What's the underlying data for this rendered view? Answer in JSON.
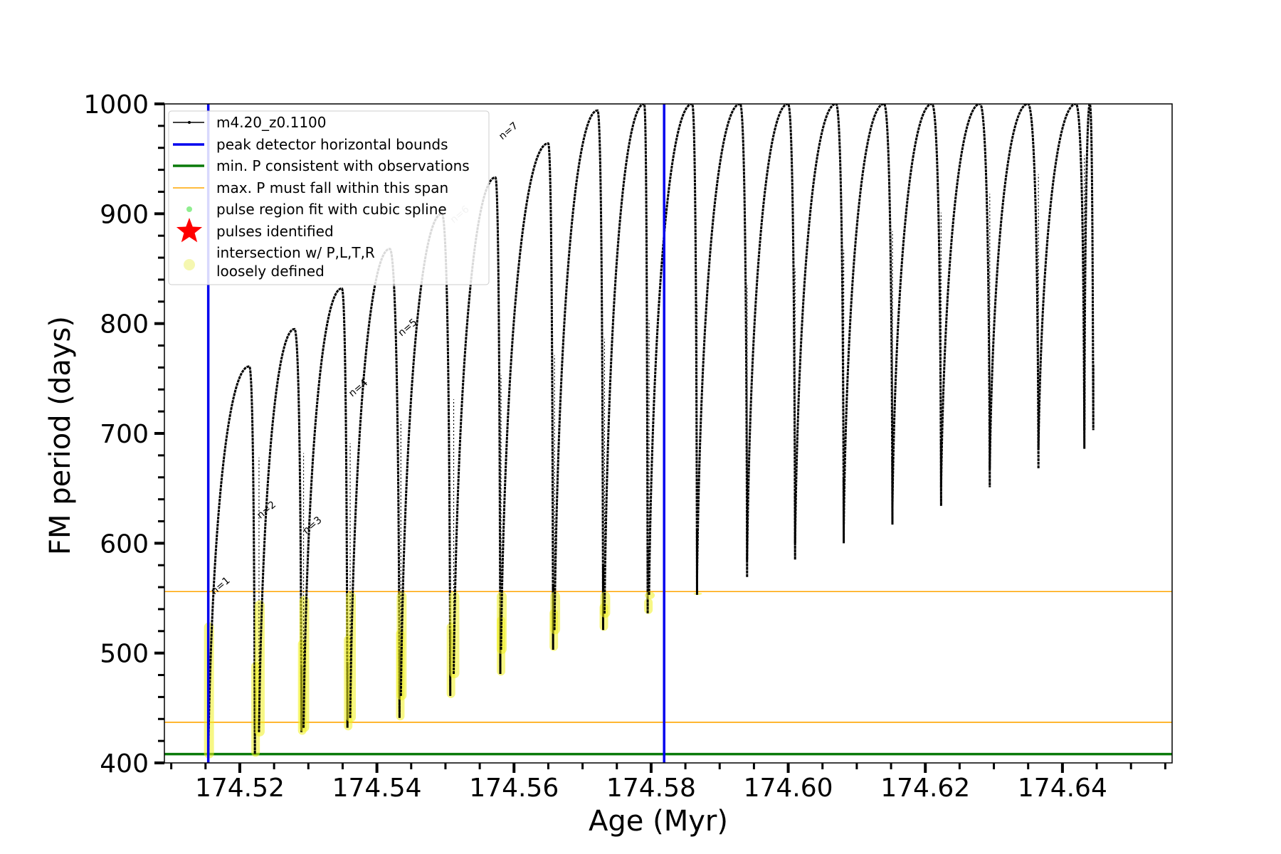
{
  "chart_data": {
    "type": "line",
    "title": "",
    "xlabel": "Age (Myr)",
    "ylabel": "FM period (days)",
    "xlim": [
      174.509,
      174.656
    ],
    "ylim": [
      400,
      1000
    ],
    "x_ticks": [
      174.52,
      174.54,
      174.56,
      174.58,
      174.6,
      174.62,
      174.64
    ],
    "x_tick_labels": [
      "174.52",
      "174.54",
      "174.56",
      "174.58",
      "174.60",
      "174.62",
      "174.64"
    ],
    "y_ticks": [
      400,
      500,
      600,
      700,
      800,
      900,
      1000
    ],
    "y_tick_labels": [
      "400",
      "500",
      "600",
      "700",
      "800",
      "900",
      "1000"
    ],
    "legend": {
      "placement": "upper-left",
      "entries": [
        {
          "label": "m4.20_z0.1100",
          "marker": "line-dot",
          "color": "#000000"
        },
        {
          "label": "peak detector horizontal bounds",
          "marker": "line",
          "color": "#0000ee"
        },
        {
          "label": "min. P consistent with observations",
          "marker": "line",
          "color": "#0a7a0a"
        },
        {
          "label": "max. P must fall within this span",
          "marker": "thin-line",
          "color": "#ffa500"
        },
        {
          "label": "pulse region fit with cubic spline",
          "marker": "dot",
          "color": "#90ee90"
        },
        {
          "label": "pulses identified",
          "marker": "star",
          "color": "#ff0000"
        },
        {
          "label": "intersection w/ P,L,T,R",
          "label2": "loosely defined",
          "marker": "circle",
          "color": "#f5f7b0"
        }
      ]
    },
    "vertical_lines": [
      {
        "name": "peak detector horizontal bounds",
        "x": 174.5154,
        "color": "#0000ee"
      },
      {
        "name": "peak detector horizontal bounds",
        "x": 174.5819,
        "color": "#0000ee"
      }
    ],
    "horizontal_lines": [
      {
        "name": "min. P consistent with observations",
        "y": 408,
        "color": "#0a7a0a"
      },
      {
        "name": "max. P must fall within this span",
        "y": 437,
        "color": "#ffa500"
      },
      {
        "name": "max. P must fall within this span",
        "y": 556,
        "color": "#ffa500"
      }
    ],
    "pulses": [
      {
        "start": 174.5154,
        "peak_x": 174.5214,
        "peak_y": 761,
        "end": 174.5222,
        "min_y": 408,
        "label": "n=1",
        "label_x": 174.5163,
        "label_y": 553
      },
      {
        "start": 174.5228,
        "peak_x": 174.528,
        "peak_y": 795,
        "end": 174.529,
        "min_y": 428,
        "label": "n=2",
        "label_x": 174.523,
        "label_y": 622
      },
      {
        "start": 174.5293,
        "peak_x": 174.5349,
        "peak_y": 832,
        "end": 174.5357,
        "min_y": 432,
        "label": "n=3",
        "label_x": 174.5297,
        "label_y": 608
      },
      {
        "start": 174.5361,
        "peak_x": 174.5419,
        "peak_y": 868,
        "end": 174.5433,
        "min_y": 441,
        "label": "n=4",
        "label_x": 174.5364,
        "label_y": 733
      },
      {
        "start": 174.5435,
        "peak_x": 174.5495,
        "peak_y": 900,
        "end": 174.5507,
        "min_y": 461,
        "label": "n=5",
        "label_x": 174.5436,
        "label_y": 788
      },
      {
        "start": 174.5512,
        "peak_x": 174.5573,
        "peak_y": 933,
        "end": 174.558,
        "min_y": 481,
        "label": "n=6",
        "label_x": 174.5512,
        "label_y": 891
      },
      {
        "start": 174.5581,
        "peak_x": 174.565,
        "peak_y": 964,
        "end": 174.5657,
        "min_y": 503,
        "label": "n=7",
        "label_x": 174.5583,
        "label_y": 967
      },
      {
        "start": 174.5659,
        "peak_x": 174.5722,
        "peak_y": 994,
        "end": 174.573,
        "min_y": 521,
        "label": "",
        "label_x": 0,
        "label_y": 0
      },
      {
        "start": 174.5732,
        "peak_x": 174.579,
        "peak_y": 1000,
        "end": 174.5795,
        "min_y": 536,
        "label": "",
        "label_x": 0,
        "label_y": 0
      },
      {
        "start": 174.5797,
        "peak_x": 174.586,
        "peak_y": 1000,
        "end": 174.5867,
        "min_y": 553,
        "label": "",
        "label_x": 0,
        "label_y": 0
      },
      {
        "start": 174.5867,
        "peak_x": 174.593,
        "peak_y": 1000,
        "end": 174.594,
        "min_y": 569,
        "label": "",
        "label_x": 0,
        "label_y": 0
      },
      {
        "start": 174.594,
        "peak_x": 174.6,
        "peak_y": 1000,
        "end": 174.601,
        "min_y": 585,
        "label": "",
        "label_x": 0,
        "label_y": 0
      },
      {
        "start": 174.601,
        "peak_x": 174.607,
        "peak_y": 1000,
        "end": 174.6081,
        "min_y": 600,
        "label": "",
        "label_x": 0,
        "label_y": 0
      },
      {
        "start": 174.6081,
        "peak_x": 174.614,
        "peak_y": 1000,
        "end": 174.6152,
        "min_y": 617,
        "label": "",
        "label_x": 0,
        "label_y": 0
      },
      {
        "start": 174.6152,
        "peak_x": 174.621,
        "peak_y": 1000,
        "end": 174.6223,
        "min_y": 634,
        "label": "",
        "label_x": 0,
        "label_y": 0
      },
      {
        "start": 174.6223,
        "peak_x": 174.628,
        "peak_y": 1000,
        "end": 174.6294,
        "min_y": 651,
        "label": "",
        "label_x": 0,
        "label_y": 0
      },
      {
        "start": 174.6294,
        "peak_x": 174.635,
        "peak_y": 1000,
        "end": 174.6365,
        "min_y": 668,
        "label": "",
        "label_x": 0,
        "label_y": 0
      },
      {
        "start": 174.6365,
        "peak_x": 174.642,
        "peak_y": 1000,
        "end": 174.6432,
        "min_y": 686,
        "label": "",
        "label_x": 0,
        "label_y": 0
      },
      {
        "start": 174.6432,
        "peak_x": 174.644,
        "peak_y": 1000,
        "end": 174.6445,
        "min_y": 703,
        "label": "",
        "label_x": 0,
        "label_y": 0
      }
    ]
  }
}
